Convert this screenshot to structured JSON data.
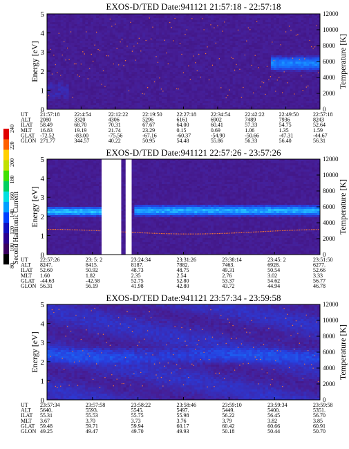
{
  "colorbar": {
    "label": "Second Harmonic Current",
    "ticks": [
      "80",
      "100",
      "120",
      "140",
      "160",
      "180",
      "200",
      "220",
      "240"
    ],
    "colors": [
      "#000000",
      "#3a0060",
      "#2a0090",
      "#1010c0",
      "#0040ff",
      "#00a0ff",
      "#00e0e0",
      "#00d060",
      "#40e000",
      "#c0e000",
      "#ffd000",
      "#ff6000",
      "#e00000"
    ]
  },
  "panels": [
    {
      "title": "EXOS-D/TED   Date:941121  21:57:18 - 22:57:18",
      "ylabel": "Energy [eV]",
      "y2label": "Temperature [K]",
      "yticks": [
        "0",
        "1",
        "2",
        "3",
        "4",
        "5"
      ],
      "y2ticks": [
        "0",
        "2000",
        "4000",
        "6000",
        "8000",
        "10000",
        "12000"
      ],
      "table": {
        "labels": [
          "UT",
          "ALT",
          "ILAT",
          "MLT",
          "GLAT",
          "GLON"
        ],
        "columns": [
          [
            "21:57:18",
            "2080",
            "58.49",
            "16.83",
            "-72.52",
            "271.77"
          ],
          [
            "22:4:54",
            "3320",
            "68.70",
            "19.19",
            "-83.00",
            "344.57"
          ],
          [
            "22:12:22",
            "4306",
            "70.31",
            "21.74",
            "-75.56",
            "40.22"
          ],
          [
            "22:19:50",
            "5296",
            "67.67",
            "23.29",
            "-67.16",
            "50.95"
          ],
          [
            "22:27:18",
            "6161",
            "64.00",
            "0.15",
            "-60.37",
            "54.48"
          ],
          [
            "22:34:54",
            "6902",
            "60.41",
            "0.69",
            "-54.90",
            "55.86"
          ],
          [
            "22:42:22",
            "7489",
            "57.33",
            "1.06",
            "-50.66",
            "56.33"
          ],
          [
            "22:49:50",
            "7936",
            "54.75",
            "1.35",
            "-47.31",
            "56.40"
          ],
          [
            "22:57:18",
            "8243",
            "52.64",
            "1.59",
            "-44.67",
            "56.31"
          ]
        ]
      }
    },
    {
      "title": "EXOS-D/TED   Date:941121  22:57:26 - 23:57:26",
      "ylabel": "Energy [eV]",
      "y2label": "Temperature [K]",
      "yticks": [
        "0",
        "1",
        "2",
        "3",
        "4",
        "5"
      ],
      "y2ticks": [
        "0",
        "2000",
        "4000",
        "6000",
        "8000",
        "10000",
        "12000"
      ],
      "table": {
        "labels": [
          "UT",
          "ALT",
          "ILAT",
          "MLT",
          "GLAT",
          "GLON"
        ],
        "columns": [
          [
            "22:57:26",
            "8247.",
            "52.60",
            "1.60",
            "-44.63",
            "56.31"
          ],
          [
            "23: 5: 2",
            "8415.",
            "50.92",
            "1.82",
            "-42.58",
            "56.19"
          ],
          [
            "23:24:34",
            "8187.",
            "48.73",
            "2.35",
            "52.75",
            "41.98"
          ],
          [
            "23:31:26",
            "7882.",
            "48.75",
            "2.54",
            "52.80",
            "42.80"
          ],
          [
            "23:38:14",
            "7463.",
            "49.31",
            "2.76",
            "53.37",
            "43.72"
          ],
          [
            "23:45: 2",
            "6928.",
            "50.54",
            "3.02",
            "54.62",
            "44.94"
          ],
          [
            "23:51:50",
            "6277.",
            "52.66",
            "3.33",
            "56.77",
            "46.78"
          ]
        ]
      }
    },
    {
      "title": "EXOS-D/TED   Date:941121  23:57:34 - 23:59:58",
      "ylabel": "Energy [eV]",
      "y2label": "Temperature [K]",
      "yticks": [
        "0",
        "1",
        "2",
        "3",
        "4",
        "5"
      ],
      "y2ticks": [
        "0",
        "2000",
        "4000",
        "6000",
        "8000",
        "10000",
        "12000"
      ],
      "table": {
        "labels": [
          "UT",
          "ALT",
          "ILAT",
          "MLT",
          "GLAT",
          "GLON"
        ],
        "columns": [
          [
            "23:57:34",
            "5640.",
            "55.31",
            "3.67",
            "59.48",
            "49.25"
          ],
          [
            "23:57:58",
            "5593.",
            "55.53",
            "3.70",
            "59.71",
            "49.47"
          ],
          [
            "23:58:22",
            "5545.",
            "55.75",
            "3.73",
            "59.94",
            "49.70"
          ],
          [
            "23:58:46",
            "5497.",
            "55.98",
            "3.76",
            "60.17",
            "49.93"
          ],
          [
            "23:59:10",
            "5449.",
            "56.22",
            "3.79",
            "60.42",
            "50.18"
          ],
          [
            "23:59:34",
            "5400.",
            "56.45",
            "3.82",
            "60.66",
            "50.44"
          ],
          [
            "23:59:58",
            "5351.",
            "56.70",
            "3.85",
            "60.91",
            "50.70"
          ]
        ]
      }
    }
  ],
  "chart_data": [
    {
      "type": "heatmap",
      "title": "EXOS-D/TED   Date:941121  21:57:18 - 22:57:18",
      "xlabel": "UT",
      "ylabel": "Energy [eV]",
      "y2label": "Temperature [K]",
      "ylim": [
        0,
        5
      ],
      "y2lim": [
        0,
        12000
      ],
      "x": [
        "21:57:18",
        "22:4:54",
        "22:12:22",
        "22:19:50",
        "22:27:18",
        "22:34:54",
        "22:42:22",
        "22:49:50",
        "22:57:18"
      ],
      "bands": [
        {
          "x_from": 0.0,
          "x_to": 0.08,
          "e_center": 1.0,
          "e_width": 1.4,
          "level": 0.15
        },
        {
          "x_from": 0.82,
          "x_to": 1.0,
          "e_center": 2.4,
          "e_width": 0.9,
          "level": 0.55
        }
      ],
      "background_level": 0.1
    },
    {
      "type": "heatmap",
      "title": "EXOS-D/TED   Date:941121  22:57:26 - 23:57:26",
      "xlabel": "UT",
      "ylabel": "Energy [eV]",
      "y2label": "Temperature [K]",
      "ylim": [
        0,
        5
      ],
      "y2lim": [
        0,
        12000
      ],
      "x": [
        "22:57:26",
        "23: 5: 2",
        "23:24:34",
        "23:31:26",
        "23:38:14",
        "23:45: 2",
        "23:51:50"
      ],
      "bands": [
        {
          "x_from": 0.0,
          "x_to": 0.2,
          "e_center": 2.25,
          "e_width": 0.6,
          "level": 0.7
        },
        {
          "x_from": 0.32,
          "x_to": 1.0,
          "e_center": 2.3,
          "e_width": 0.7,
          "level": 0.65
        }
      ],
      "gaps": [
        [
          0.2,
          0.272
        ],
        [
          0.288,
          0.31
        ]
      ],
      "background_level": 0.1
    },
    {
      "type": "heatmap",
      "title": "EXOS-D/TED   Date:941121  23:57:34 - 23:59:58",
      "xlabel": "UT",
      "ylabel": "Energy [eV]",
      "y2label": "Temperature [K]",
      "ylim": [
        0,
        5
      ],
      "y2lim": [
        0,
        12000
      ],
      "x": [
        "23:57:34",
        "23:57:58",
        "23:58:22",
        "23:58:46",
        "23:59:10",
        "23:59:34",
        "23:59:58"
      ],
      "bands": [
        {
          "x_from": 0.0,
          "x_to": 1.0,
          "e_center": 2.3,
          "e_width": 1.2,
          "level": 0.3
        }
      ],
      "background_level": 0.16
    }
  ]
}
